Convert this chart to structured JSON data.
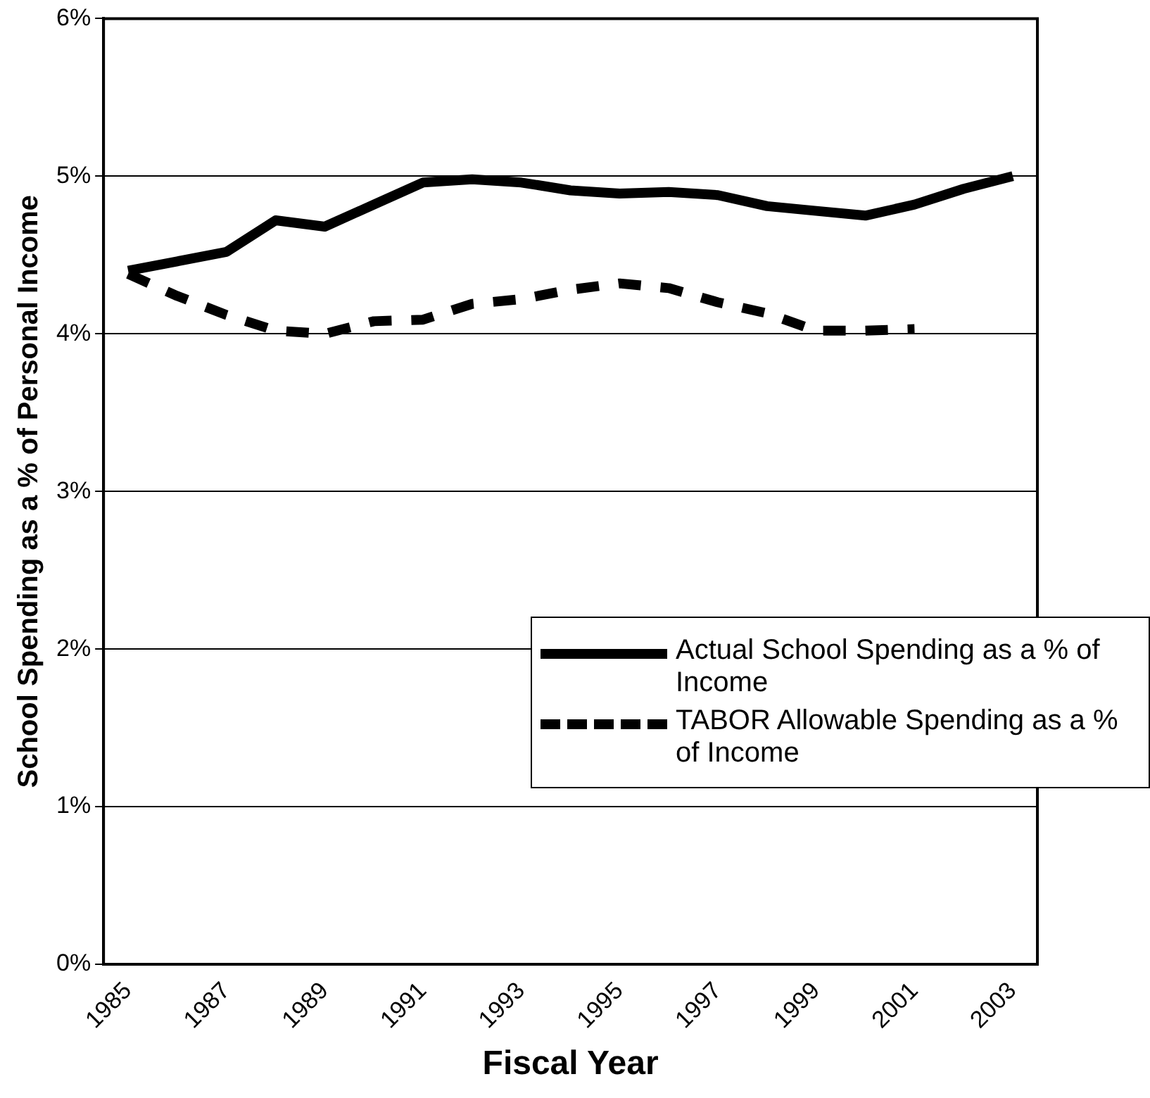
{
  "chart_data": {
    "type": "line",
    "xlabel": "Fiscal Year",
    "ylabel": "School Spending as a % of Personal Income",
    "categories": [
      "1985",
      null,
      "1987",
      null,
      "1989",
      null,
      "1991",
      null,
      "1993",
      null,
      "1995",
      null,
      "1997",
      null,
      "1999",
      null,
      "2001",
      null,
      "2003"
    ],
    "ylim": [
      0,
      6
    ],
    "yticks": [
      {
        "value": 0,
        "label": "0%"
      },
      {
        "value": 1,
        "label": "1%"
      },
      {
        "value": 2,
        "label": "2%"
      },
      {
        "value": 3,
        "label": "3%"
      },
      {
        "value": 4,
        "label": "4%"
      },
      {
        "value": 5,
        "label": "5%"
      },
      {
        "value": 6,
        "label": "6%"
      }
    ],
    "grid": "y",
    "legend": "bottom right",
    "marker": "none",
    "series": [
      {
        "name": "Actual School Spending as a % of Income",
        "color": "#000000",
        "line_style": "solid",
        "values": [
          4.4,
          4.46,
          4.52,
          4.72,
          4.68,
          4.82,
          4.96,
          4.98,
          4.96,
          4.91,
          4.89,
          4.9,
          4.88,
          4.81,
          4.78,
          4.75,
          4.82,
          4.92,
          5.0
        ]
      },
      {
        "name": "TABOR Allowable Spending as a % of Income",
        "color": "#000000",
        "line_style": "dashed",
        "values": [
          4.38,
          4.24,
          4.12,
          4.02,
          4.0,
          4.08,
          4.09,
          4.19,
          4.22,
          4.28,
          4.32,
          4.29,
          4.2,
          4.13,
          4.02,
          4.02,
          4.03,
          null,
          null
        ]
      }
    ]
  }
}
